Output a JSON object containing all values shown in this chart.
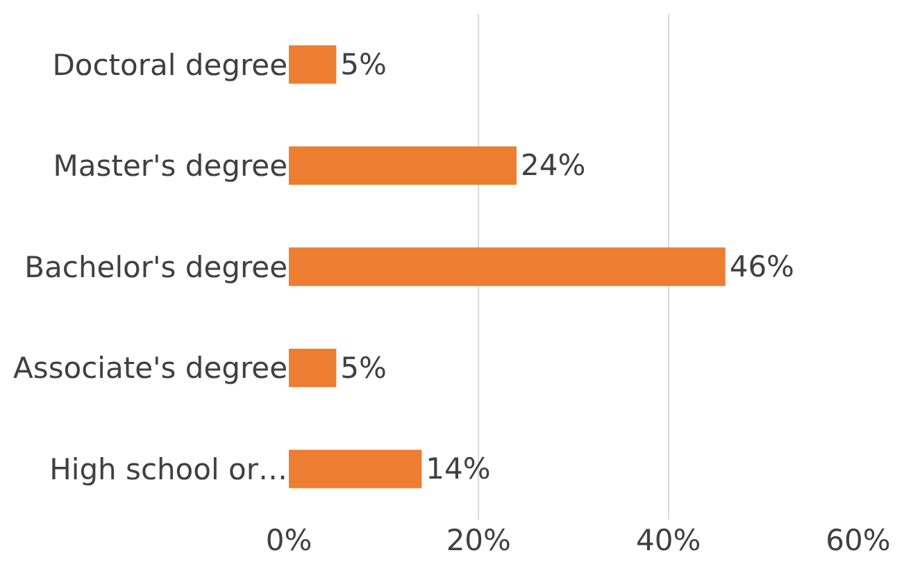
{
  "chart_data": {
    "type": "bar",
    "orientation": "horizontal",
    "categories": [
      "Doctoral degree",
      "Master's degree",
      "Bachelor's degree",
      "Associate's degree",
      "High school or…"
    ],
    "values": [
      5,
      24,
      46,
      5,
      14
    ],
    "color": "#ed7d31",
    "xlim": [
      0,
      60
    ],
    "xticks": [
      {
        "value": 0,
        "label": "0%"
      },
      {
        "value": 20,
        "label": "20%"
      },
      {
        "value": 40,
        "label": "40%"
      },
      {
        "value": 60,
        "label": "60%"
      }
    ],
    "value_labels": [
      "5%",
      "24%",
      "46%",
      "5%",
      "14%"
    ],
    "grid": "x"
  }
}
